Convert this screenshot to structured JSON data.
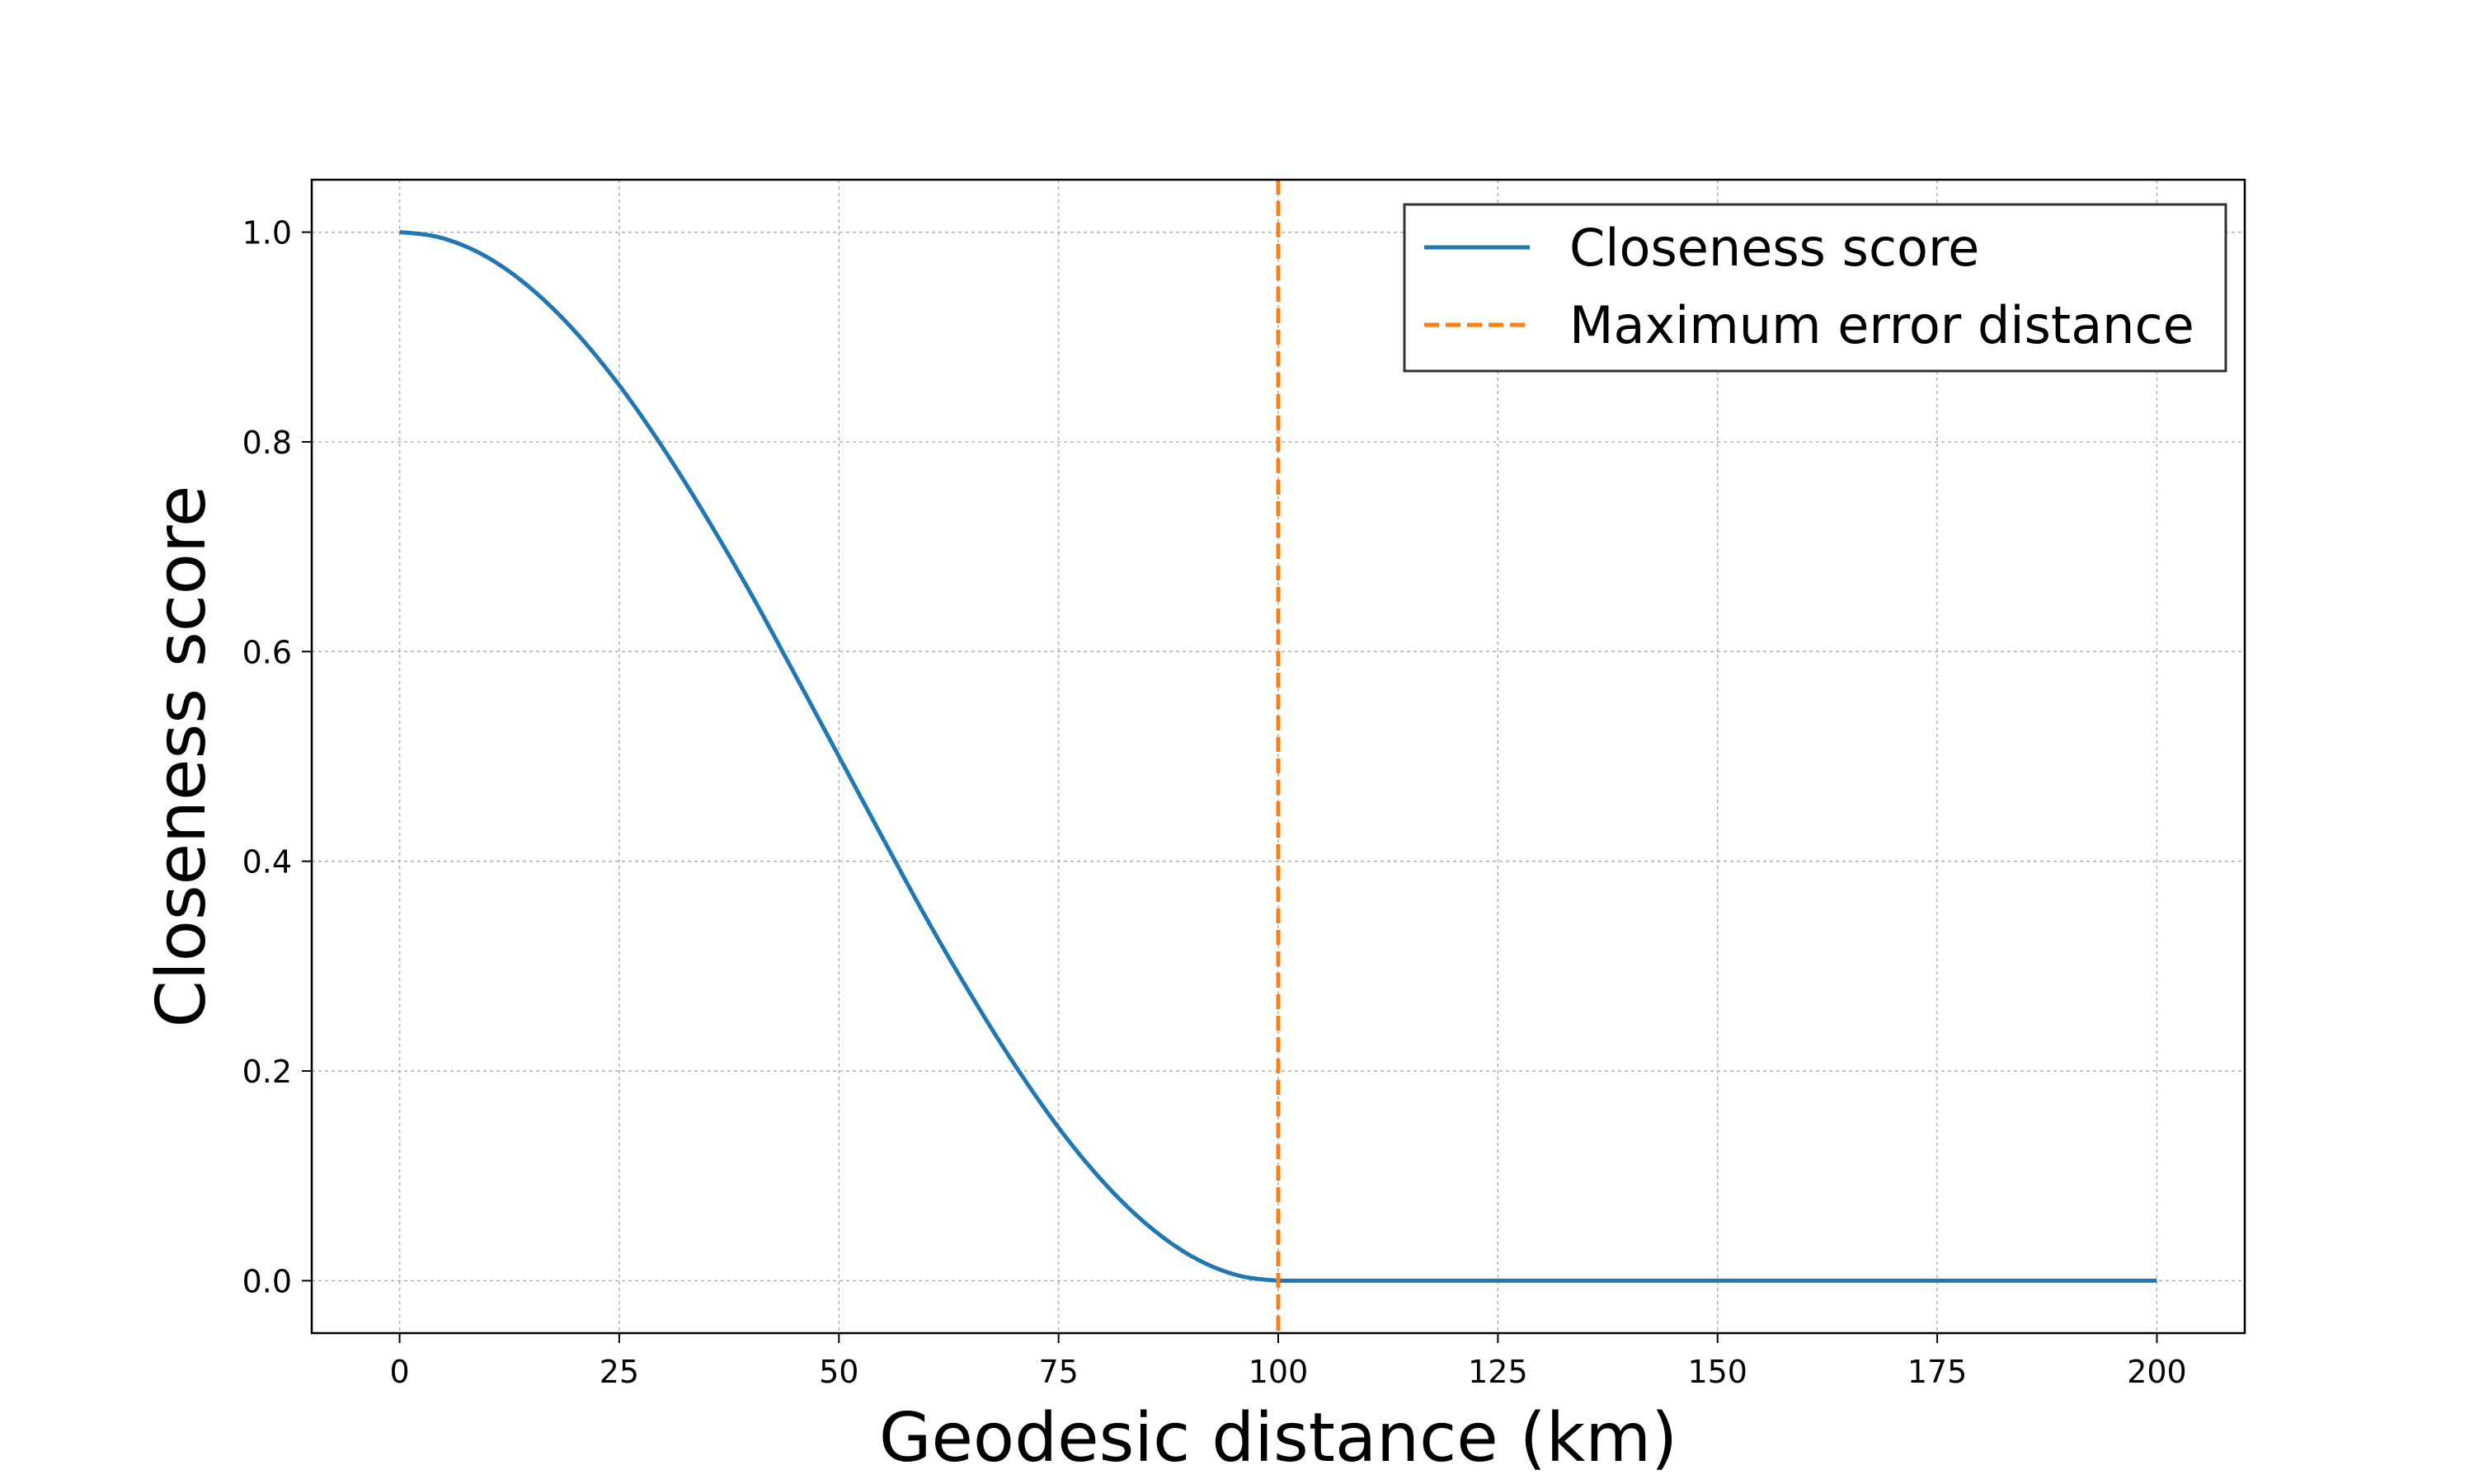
{
  "chart_data": {
    "type": "line",
    "title": "",
    "xlabel": "Geodesic distance (km)",
    "ylabel": "Closeness score",
    "xlim": [
      -10,
      210
    ],
    "ylim": [
      -0.05,
      1.05
    ],
    "x_ticks": [
      0,
      25,
      50,
      75,
      100,
      125,
      150,
      175,
      200
    ],
    "x_tick_labels": [
      "0",
      "25",
      "50",
      "75",
      "100",
      "125",
      "150",
      "175",
      "200"
    ],
    "y_ticks": [
      0.0,
      0.2,
      0.4,
      0.6,
      0.8,
      1.0
    ],
    "y_tick_labels": [
      "0.0",
      "0.2",
      "0.4",
      "0.6",
      "0.8",
      "1.0"
    ],
    "grid": true,
    "legend_position": "top-right",
    "series": [
      {
        "name": "Closeness score",
        "style": "solid",
        "color": "#1f77b4",
        "x": [
          0,
          5,
          10,
          15,
          20,
          25,
          30,
          35,
          40,
          45,
          50,
          55,
          60,
          65,
          70,
          75,
          80,
          85,
          90,
          95,
          100,
          110,
          120,
          130,
          140,
          150,
          160,
          170,
          180,
          190,
          200
        ],
        "y": [
          1.0,
          0.994,
          0.976,
          0.946,
          0.905,
          0.854,
          0.794,
          0.727,
          0.655,
          0.578,
          0.5,
          0.422,
          0.345,
          0.273,
          0.206,
          0.146,
          0.095,
          0.054,
          0.024,
          0.006,
          0.0,
          0.0,
          0.0,
          0.0,
          0.0,
          0.0,
          0.0,
          0.0,
          0.0,
          0.0,
          0.0
        ]
      },
      {
        "name": "Maximum error distance",
        "style": "dashed",
        "color": "#ff7f0e",
        "type": "vline",
        "x": 100
      }
    ]
  }
}
